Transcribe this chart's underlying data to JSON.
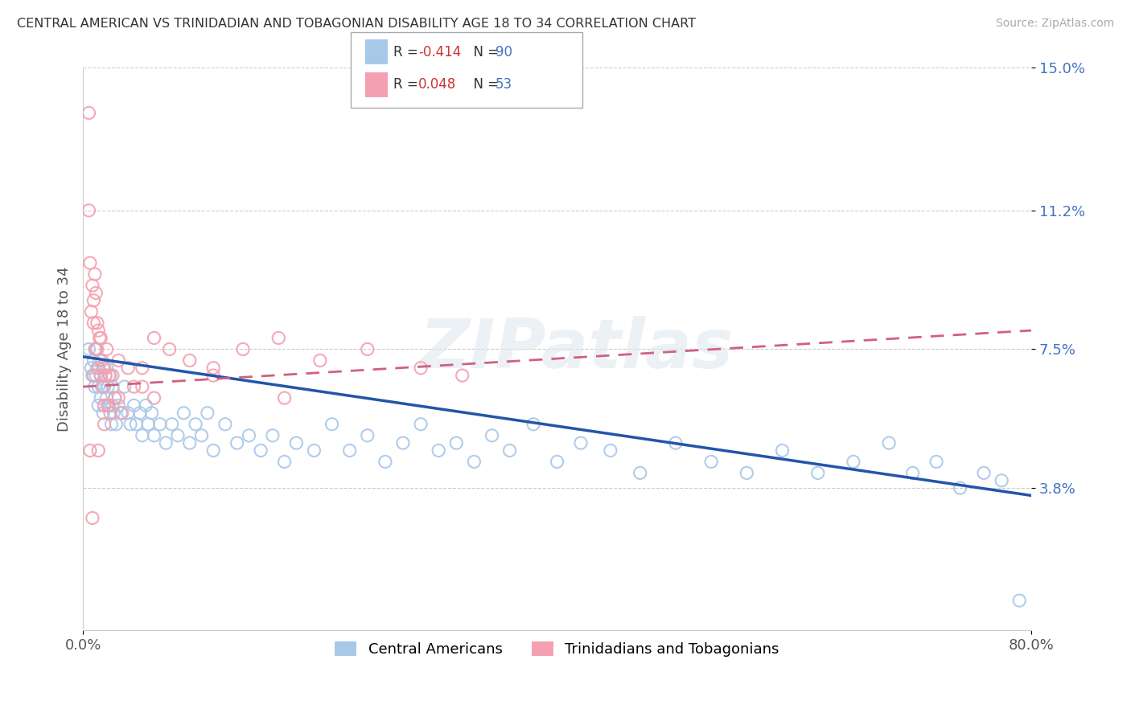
{
  "title": "CENTRAL AMERICAN VS TRINIDADIAN AND TOBAGONIAN DISABILITY AGE 18 TO 34 CORRELATION CHART",
  "source": "Source: ZipAtlas.com",
  "ylabel": "Disability Age 18 to 34",
  "xlim": [
    0.0,
    0.8
  ],
  "ylim": [
    0.0,
    0.15
  ],
  "yticks": [
    0.038,
    0.075,
    0.112,
    0.15
  ],
  "ytick_labels": [
    "3.8%",
    "7.5%",
    "11.2%",
    "15.0%"
  ],
  "xticks": [
    0.0,
    0.8
  ],
  "xtick_labels": [
    "0.0%",
    "80.0%"
  ],
  "r_blue": -0.414,
  "n_blue": 90,
  "r_pink": 0.048,
  "n_pink": 53,
  "legend_label_blue": "Central Americans",
  "legend_label_pink": "Trinidadians and Tobagonians",
  "blue_color": "#a8c8e8",
  "pink_color": "#f4a0b0",
  "trend_blue_color": "#2255aa",
  "trend_pink_color": "#d06080",
  "watermark": "ZIPatlas",
  "blue_trend_start_y": 0.073,
  "blue_trend_end_y": 0.036,
  "pink_trend_start_y": 0.065,
  "pink_trend_end_y": 0.08,
  "blue_points_x": [
    0.005,
    0.007,
    0.008,
    0.009,
    0.01,
    0.01,
    0.011,
    0.012,
    0.013,
    0.013,
    0.014,
    0.015,
    0.015,
    0.016,
    0.017,
    0.017,
    0.018,
    0.018,
    0.019,
    0.02,
    0.02,
    0.021,
    0.022,
    0.023,
    0.024,
    0.025,
    0.025,
    0.026,
    0.027,
    0.028,
    0.03,
    0.032,
    0.035,
    0.038,
    0.04,
    0.043,
    0.045,
    0.048,
    0.05,
    0.053,
    0.055,
    0.058,
    0.06,
    0.065,
    0.07,
    0.075,
    0.08,
    0.085,
    0.09,
    0.095,
    0.1,
    0.105,
    0.11,
    0.12,
    0.13,
    0.14,
    0.15,
    0.16,
    0.17,
    0.18,
    0.195,
    0.21,
    0.225,
    0.24,
    0.255,
    0.27,
    0.285,
    0.3,
    0.315,
    0.33,
    0.345,
    0.36,
    0.38,
    0.4,
    0.42,
    0.445,
    0.47,
    0.5,
    0.53,
    0.56,
    0.59,
    0.62,
    0.65,
    0.68,
    0.7,
    0.72,
    0.74,
    0.76,
    0.775,
    0.79
  ],
  "blue_points_y": [
    0.075,
    0.07,
    0.068,
    0.072,
    0.065,
    0.075,
    0.068,
    0.07,
    0.065,
    0.06,
    0.072,
    0.068,
    0.062,
    0.065,
    0.058,
    0.07,
    0.065,
    0.06,
    0.068,
    0.062,
    0.07,
    0.065,
    0.06,
    0.068,
    0.055,
    0.065,
    0.06,
    0.058,
    0.062,
    0.055,
    0.06,
    0.058,
    0.065,
    0.058,
    0.055,
    0.06,
    0.055,
    0.058,
    0.052,
    0.06,
    0.055,
    0.058,
    0.052,
    0.055,
    0.05,
    0.055,
    0.052,
    0.058,
    0.05,
    0.055,
    0.052,
    0.058,
    0.048,
    0.055,
    0.05,
    0.052,
    0.048,
    0.052,
    0.045,
    0.05,
    0.048,
    0.055,
    0.048,
    0.052,
    0.045,
    0.05,
    0.055,
    0.048,
    0.05,
    0.045,
    0.052,
    0.048,
    0.055,
    0.045,
    0.05,
    0.048,
    0.042,
    0.05,
    0.045,
    0.042,
    0.048,
    0.042,
    0.045,
    0.05,
    0.042,
    0.045,
    0.038,
    0.042,
    0.04,
    0.008
  ],
  "pink_points_x": [
    0.005,
    0.005,
    0.006,
    0.007,
    0.008,
    0.009,
    0.009,
    0.01,
    0.011,
    0.011,
    0.012,
    0.012,
    0.013,
    0.013,
    0.014,
    0.015,
    0.015,
    0.016,
    0.017,
    0.018,
    0.018,
    0.019,
    0.02,
    0.021,
    0.022,
    0.023,
    0.025,
    0.027,
    0.03,
    0.033,
    0.038,
    0.043,
    0.05,
    0.06,
    0.073,
    0.09,
    0.11,
    0.135,
    0.165,
    0.2,
    0.24,
    0.285,
    0.17,
    0.06,
    0.11,
    0.05,
    0.03,
    0.018,
    0.013,
    0.009,
    0.006,
    0.32,
    0.008
  ],
  "pink_points_y": [
    0.138,
    0.112,
    0.098,
    0.085,
    0.092,
    0.082,
    0.088,
    0.095,
    0.075,
    0.09,
    0.082,
    0.075,
    0.08,
    0.07,
    0.078,
    0.078,
    0.068,
    0.072,
    0.065,
    0.07,
    0.06,
    0.068,
    0.075,
    0.06,
    0.068,
    0.058,
    0.068,
    0.062,
    0.062,
    0.058,
    0.07,
    0.065,
    0.07,
    0.078,
    0.075,
    0.072,
    0.07,
    0.075,
    0.078,
    0.072,
    0.075,
    0.07,
    0.062,
    0.062,
    0.068,
    0.065,
    0.072,
    0.055,
    0.048,
    0.068,
    0.048,
    0.068,
    0.03
  ]
}
